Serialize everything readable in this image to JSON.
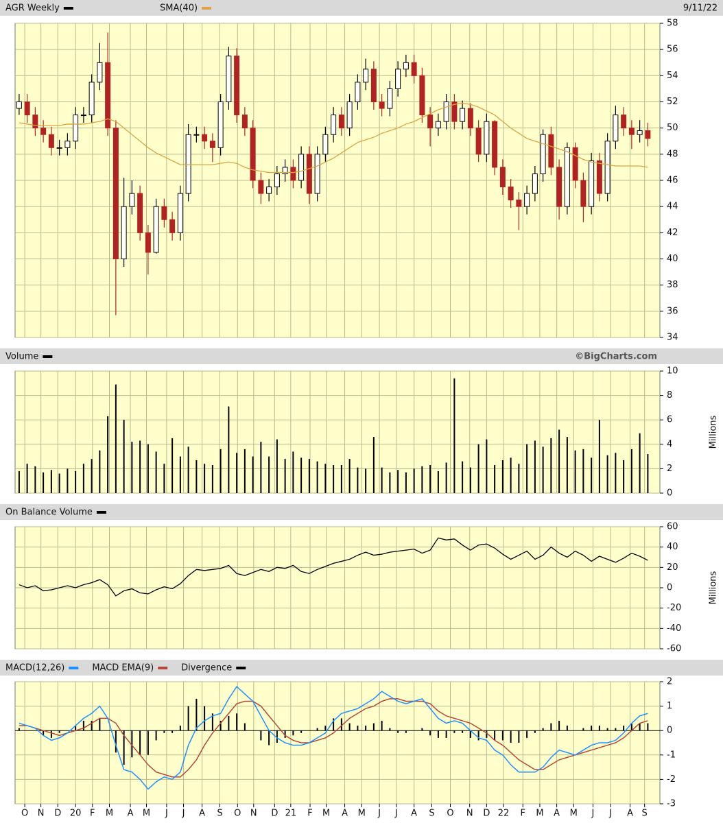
{
  "chart_data": [
    {
      "type": "candlestick",
      "date": "9/11/22",
      "series": [
        {
          "name": "AGR Weekly",
          "color": "#000000",
          "down_color": "#b22222",
          "open": [
            51.5,
            52,
            51,
            50,
            49.5,
            48.5,
            48.5,
            49,
            51,
            51,
            53.5,
            55,
            50,
            40,
            44,
            45,
            42,
            40.5,
            44,
            43,
            42,
            45,
            49.5,
            49.5,
            49,
            48.5,
            52,
            55.5,
            51,
            50,
            46,
            45,
            45.5,
            46.5,
            47,
            46,
            48,
            45,
            48,
            49.5,
            51,
            50,
            52,
            53.5,
            54.5,
            52,
            51.5,
            53,
            54.5,
            55,
            54,
            51,
            50,
            50.5,
            52,
            50.5,
            51.5,
            50,
            48,
            50.5,
            47,
            45.5,
            44.5,
            44,
            45,
            46.5,
            49.5,
            47,
            44,
            48.5,
            46,
            44,
            47.5,
            45,
            49,
            51,
            50,
            49.5,
            49.8
          ],
          "high": [
            52.6,
            52.6,
            51.6,
            50.6,
            50.1,
            49.1,
            49.6,
            51.6,
            51.6,
            54.1,
            56.5,
            57.3,
            50.6,
            46.2,
            46,
            45.6,
            42.6,
            44.6,
            44.6,
            43.6,
            45.6,
            50.3,
            50.1,
            50.1,
            49.6,
            52.6,
            56.2,
            56.1,
            51.6,
            50.6,
            46.6,
            46.1,
            47.1,
            47.6,
            47.6,
            48.6,
            48.6,
            48.6,
            50.1,
            51.6,
            51.6,
            52.6,
            54.1,
            55.3,
            55.1,
            52.6,
            53.6,
            55.1,
            55.6,
            55.6,
            54.6,
            51.6,
            51.1,
            52.6,
            52.6,
            52.1,
            51.9,
            50.6,
            51.1,
            50.6,
            47.6,
            46.1,
            45.1,
            45.6,
            47.1,
            49.9,
            50.1,
            47.6,
            48.9,
            48.9,
            46.6,
            48.1,
            48.1,
            49.6,
            51.7,
            51.6,
            50.6,
            50.6,
            50.4
          ],
          "low": [
            51,
            50.4,
            49.4,
            48.9,
            47.9,
            47.9,
            47.9,
            48.4,
            50.4,
            50.4,
            52.9,
            49.4,
            35.7,
            39.4,
            43.4,
            41.4,
            38.8,
            40.4,
            42.4,
            41.4,
            41.4,
            44.4,
            48.9,
            48.4,
            47.4,
            47.9,
            51.4,
            50.4,
            49.4,
            45.4,
            44.2,
            44.4,
            44.9,
            45.9,
            45.4,
            45.4,
            44.2,
            44.4,
            47.4,
            48.9,
            49.4,
            49.4,
            51.4,
            52.9,
            51.4,
            50.9,
            50.9,
            52.4,
            53.9,
            53.4,
            50.4,
            48.6,
            49.4,
            49.9,
            49.9,
            49.9,
            49.4,
            47.4,
            47.4,
            46.4,
            44.9,
            43.9,
            42.2,
            43.4,
            44.4,
            45.9,
            46.4,
            43,
            43.4,
            45.4,
            42.8,
            43.4,
            44.4,
            44.4,
            48.4,
            49.4,
            48.4,
            48.9,
            48.6
          ],
          "close": [
            52,
            51,
            50,
            49.5,
            48.5,
            48.5,
            49,
            51,
            51,
            53.5,
            55,
            50,
            40,
            44,
            45,
            42,
            40.5,
            44,
            43,
            42,
            45,
            49.5,
            49.5,
            49,
            48.5,
            52,
            55.5,
            51,
            50,
            46,
            45,
            45.5,
            46.5,
            47,
            46,
            48,
            45,
            48,
            49.5,
            51,
            50,
            52,
            53.5,
            54.5,
            52,
            51.5,
            53,
            54.5,
            55,
            54,
            51,
            50,
            50.5,
            52,
            50.5,
            51.5,
            50,
            48,
            50.5,
            47,
            45.5,
            44.5,
            44,
            45,
            46.5,
            49.5,
            47,
            44,
            48.5,
            46,
            44,
            47.5,
            45,
            49,
            51,
            50,
            49.5,
            49.8,
            49.2
          ]
        },
        {
          "name": "SMA(40)",
          "color": "#d9a441",
          "values": [
            50.4,
            50.3,
            50.2,
            50.2,
            50.2,
            50.2,
            50.3,
            50.3,
            50.3,
            50.4,
            50.5,
            50.7,
            50.5,
            50.0,
            49.5,
            49.0,
            48.5,
            48.1,
            47.8,
            47.5,
            47.2,
            47.2,
            47.2,
            47.2,
            47.2,
            47.3,
            47.4,
            47.3,
            47.0,
            46.8,
            46.7,
            46.6,
            46.6,
            46.6,
            46.6,
            46.7,
            46.9,
            47.1,
            47.4,
            47.7,
            48.1,
            48.5,
            48.9,
            49.1,
            49.3,
            49.6,
            49.8,
            50.0,
            50.3,
            50.5,
            50.8,
            51.1,
            51.4,
            51.6,
            51.8,
            51.9,
            51.8,
            51.6,
            51.3,
            51.0,
            50.5,
            50.0,
            49.6,
            49.2,
            49.0,
            48.8,
            48.6,
            48.4,
            48.2,
            47.9,
            47.6,
            47.4,
            47.3,
            47.2,
            47.1,
            47.1,
            47.1,
            47.1,
            47.0
          ]
        }
      ],
      "ylim": [
        34,
        58
      ],
      "yticks": [
        34,
        36,
        38,
        40,
        42,
        44,
        46,
        48,
        50,
        52,
        54,
        56,
        58
      ]
    },
    {
      "type": "bar",
      "title": "Volume",
      "credit": "©BigCharts.com",
      "y_label": "Millions",
      "color": "#000000",
      "values": [
        1.8,
        2.4,
        2.2,
        1.7,
        1.9,
        1.6,
        2.0,
        1.8,
        2.4,
        2.8,
        3.5,
        6.3,
        8.9,
        6.0,
        4.2,
        4.3,
        4.0,
        3.4,
        2.4,
        4.5,
        3.0,
        3.8,
        2.7,
        2.4,
        2.3,
        3.6,
        7.1,
        3.3,
        3.6,
        3.0,
        4.2,
        3.0,
        4.4,
        2.8,
        3.4,
        2.9,
        2.8,
        2.6,
        2.4,
        2.3,
        2.3,
        2.8,
        2.1,
        2.0,
        4.6,
        2.1,
        1.7,
        1.9,
        1.7,
        2.0,
        2.2,
        2.3,
        1.8,
        2.5,
        9.4,
        2.6,
        2.1,
        4.0,
        4.4,
        2.3,
        2.7,
        2.9,
        2.4,
        4.0,
        4.3,
        3.8,
        4.5,
        5.2,
        4.6,
        3.5,
        3.6,
        2.9,
        6.0,
        3.1,
        3.3,
        2.7,
        3.6,
        4.9,
        3.2
      ],
      "ylim": [
        0,
        10
      ],
      "yticks": [
        0,
        2,
        4,
        6,
        8,
        10
      ]
    },
    {
      "type": "line",
      "title": "On Balance Volume",
      "y_label": "Millions",
      "color": "#000000",
      "values": [
        3,
        0,
        2,
        -3,
        -2,
        0,
        2,
        0,
        3,
        5,
        8,
        3,
        -8,
        -3,
        -1,
        -5,
        -6,
        -2,
        1,
        -1,
        4,
        12,
        18,
        17,
        18,
        19,
        22,
        14,
        12,
        15,
        18,
        16,
        20,
        19,
        22,
        16,
        14,
        18,
        21,
        24,
        26,
        28,
        32,
        35,
        32,
        33,
        35,
        36,
        37,
        38,
        34,
        37,
        49,
        47,
        48,
        42,
        37,
        42,
        43,
        39,
        33,
        28,
        32,
        36,
        28,
        32,
        40,
        34,
        30,
        36,
        32,
        26,
        31,
        28,
        25,
        29,
        34,
        31,
        27
      ],
      "ylim": [
        -60,
        60
      ],
      "yticks": [
        -60,
        -40,
        -20,
        0,
        20,
        40,
        60
      ]
    },
    {
      "type": "macd",
      "series": [
        {
          "name": "MACD(12,26)",
          "color": "#1e90ff",
          "values": [
            0.3,
            0.2,
            0.1,
            -0.2,
            -0.4,
            -0.3,
            -0.1,
            0.2,
            0.5,
            0.7,
            1.0,
            0.5,
            -0.6,
            -1.6,
            -1.7,
            -2.0,
            -2.4,
            -2.1,
            -1.9,
            -2.0,
            -1.7,
            -0.6,
            0.1,
            0.4,
            0.6,
            0.7,
            1.3,
            1.8,
            1.5,
            1.2,
            0.6,
            0.0,
            -0.3,
            -0.5,
            -0.6,
            -0.6,
            -0.5,
            -0.3,
            -0.1,
            0.4,
            0.7,
            0.8,
            0.9,
            1.1,
            1.3,
            1.6,
            1.4,
            1.2,
            1.1,
            1.2,
            1.3,
            0.9,
            0.5,
            0.3,
            0.4,
            0.3,
            0.0,
            -0.3,
            -0.4,
            -0.8,
            -1.0,
            -1.4,
            -1.7,
            -1.7,
            -1.7,
            -1.5,
            -1.1,
            -0.8,
            -0.9,
            -1.0,
            -0.8,
            -0.6,
            -0.5,
            -0.5,
            -0.4,
            -0.1,
            0.3,
            0.6,
            0.7
          ]
        },
        {
          "name": "MACD EMA(9)",
          "color": "#b5483a",
          "values": [
            0.2,
            0.2,
            0.1,
            0.0,
            -0.1,
            -0.2,
            -0.1,
            0.0,
            0.1,
            0.3,
            0.5,
            0.5,
            0.3,
            -0.2,
            -0.6,
            -1.0,
            -1.4,
            -1.7,
            -1.8,
            -1.9,
            -1.9,
            -1.6,
            -1.2,
            -0.6,
            -0.1,
            0.3,
            0.7,
            1.1,
            1.2,
            1.2,
            1.0,
            0.6,
            0.2,
            -0.2,
            -0.4,
            -0.5,
            -0.5,
            -0.4,
            -0.3,
            -0.1,
            0.2,
            0.5,
            0.7,
            0.9,
            1.0,
            1.2,
            1.3,
            1.3,
            1.2,
            1.2,
            1.2,
            1.1,
            0.8,
            0.6,
            0.5,
            0.4,
            0.3,
            0.1,
            -0.1,
            -0.4,
            -0.6,
            -0.9,
            -1.2,
            -1.4,
            -1.6,
            -1.6,
            -1.4,
            -1.2,
            -1.1,
            -1.0,
            -0.9,
            -0.8,
            -0.7,
            -0.6,
            -0.5,
            -0.3,
            0.0,
            0.3,
            0.4
          ]
        },
        {
          "name": "Divergence",
          "color": "#000000",
          "values": [
            0.1,
            0,
            0,
            -0.2,
            -0.3,
            -0.1,
            0,
            0.2,
            0.4,
            0.4,
            0.5,
            0,
            -0.9,
            -1.4,
            -1.1,
            -1.0,
            -1.0,
            -0.4,
            -0.1,
            -0.1,
            0.2,
            1.0,
            1.3,
            1.0,
            0.7,
            0.4,
            0.6,
            0.7,
            0.3,
            0,
            -0.4,
            -0.6,
            -0.5,
            -0.3,
            -0.2,
            -0.1,
            0,
            0.1,
            0.2,
            0.5,
            0.5,
            0.3,
            0.2,
            0.2,
            0.3,
            0.4,
            0.1,
            -0.1,
            -0.1,
            0,
            0.1,
            -0.2,
            -0.3,
            -0.3,
            -0.1,
            -0.1,
            -0.3,
            -0.4,
            -0.3,
            -0.4,
            -0.4,
            -0.5,
            -0.5,
            -0.3,
            -0.1,
            0.1,
            0.3,
            0.4,
            0.2,
            0,
            0.1,
            0.2,
            0.2,
            0.1,
            0.1,
            0.2,
            0.3,
            0.3,
            0.3
          ]
        }
      ],
      "ylim": [
        -3,
        2
      ],
      "yticks": [
        -3,
        -2,
        -1,
        0,
        1,
        2
      ],
      "xlim": [
        0,
        80
      ],
      "xticks": [
        {
          "value": 1.2,
          "label": "O"
        },
        {
          "value": 3.2,
          "label": "N"
        },
        {
          "value": 5.3,
          "label": "D"
        },
        {
          "value": 7.5,
          "label": "20"
        },
        {
          "value": 9.6,
          "label": "F"
        },
        {
          "value": 11.7,
          "label": "M"
        },
        {
          "value": 14.3,
          "label": "A"
        },
        {
          "value": 16.3,
          "label": "M"
        },
        {
          "value": 18.8,
          "label": "J"
        },
        {
          "value": 20.9,
          "label": "J"
        },
        {
          "value": 23.2,
          "label": "A"
        },
        {
          "value": 25.4,
          "label": "S"
        },
        {
          "value": 27.6,
          "label": "O"
        },
        {
          "value": 29.6,
          "label": "N"
        },
        {
          "value": 32.2,
          "label": "D"
        },
        {
          "value": 34.2,
          "label": "21"
        },
        {
          "value": 36.6,
          "label": "F"
        },
        {
          "value": 38.6,
          "label": "M"
        },
        {
          "value": 40.9,
          "label": "A"
        },
        {
          "value": 43.0,
          "label": "M"
        },
        {
          "value": 45.2,
          "label": "J"
        },
        {
          "value": 47.3,
          "label": "J"
        },
        {
          "value": 49.5,
          "label": "A"
        },
        {
          "value": 51.7,
          "label": "S"
        },
        {
          "value": 54.0,
          "label": "O"
        },
        {
          "value": 56.4,
          "label": "N"
        },
        {
          "value": 58.5,
          "label": "D"
        },
        {
          "value": 60.6,
          "label": "22"
        },
        {
          "value": 63.0,
          "label": "F"
        },
        {
          "value": 65.1,
          "label": "M"
        },
        {
          "value": 67.2,
          "label": "A"
        },
        {
          "value": 69.3,
          "label": "M"
        },
        {
          "value": 71.7,
          "label": "J"
        },
        {
          "value": 73.9,
          "label": "J"
        },
        {
          "value": 76.3,
          "label": "A"
        },
        {
          "value": 78.1,
          "label": "S"
        }
      ]
    }
  ]
}
